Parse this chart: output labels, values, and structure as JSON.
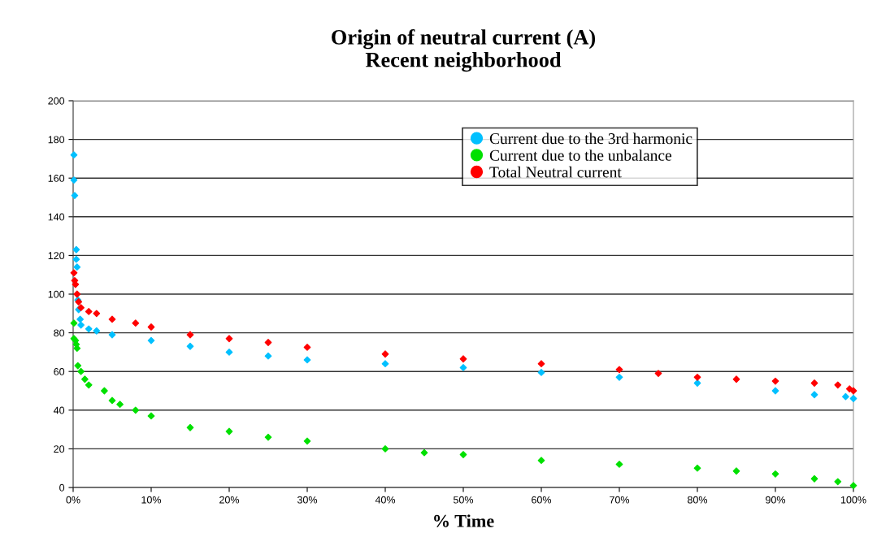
{
  "chart_data": {
    "type": "scatter",
    "title": "Origin of neutral current (A)\nRecent neighborhood",
    "xlabel": "% Time",
    "xlim": [
      0,
      100
    ],
    "xticks": [
      {
        "value": 0,
        "label": "0%"
      },
      {
        "value": 10,
        "label": "10%"
      },
      {
        "value": 20,
        "label": "20%"
      },
      {
        "value": 30,
        "label": "30%"
      },
      {
        "value": 40,
        "label": "40%"
      },
      {
        "value": 50,
        "label": "50%"
      },
      {
        "value": 60,
        "label": "60%"
      },
      {
        "value": 70,
        "label": "70%"
      },
      {
        "value": 80,
        "label": "80%"
      },
      {
        "value": 90,
        "label": "90%"
      },
      {
        "value": 100,
        "label": "100%"
      }
    ],
    "ylim": [
      0,
      200
    ],
    "yticks": [
      0,
      20,
      40,
      60,
      80,
      100,
      120,
      140,
      160,
      180,
      200
    ],
    "grid": "y",
    "legend": "top right",
    "marker": "diamond",
    "series": [
      {
        "name": "Current due to the 3rd harmonic",
        "color": "#00c0ff",
        "x": [
          0.1,
          0.1,
          0.2,
          0.4,
          0.4,
          0.5,
          0.6,
          0.7,
          0.9,
          1,
          2,
          3,
          5,
          10,
          15,
          20,
          25,
          30,
          40,
          50,
          60,
          70,
          80,
          90,
          95,
          99,
          100
        ],
        "values": [
          172,
          159,
          151,
          123,
          118,
          114,
          97,
          92,
          87,
          84,
          82,
          81,
          79,
          76,
          73,
          70,
          68,
          66,
          64,
          62,
          59.5,
          57,
          54,
          50,
          48,
          47,
          46
        ]
      },
      {
        "name": "Current due to the unbalance",
        "color": "#00e000",
        "x": [
          0.1,
          0.1,
          0.3,
          0.4,
          0.5,
          0.6,
          1,
          1.5,
          2,
          4,
          5,
          6,
          8,
          10,
          15,
          20,
          25,
          30,
          40,
          45,
          50,
          60,
          70,
          80,
          85,
          90,
          95,
          98,
          100
        ],
        "values": [
          85,
          77,
          76,
          74,
          72,
          63,
          60,
          56,
          53,
          50,
          45,
          43,
          40,
          37,
          31,
          29,
          26,
          24,
          20,
          18,
          17,
          14,
          12,
          10,
          8.5,
          7,
          4.5,
          3,
          1
        ]
      },
      {
        "name": "Total Neutral current",
        "color": "#ff0000",
        "x": [
          0.1,
          0.2,
          0.3,
          0.5,
          0.7,
          1,
          2,
          3,
          5,
          8,
          10,
          15,
          20,
          25,
          30,
          40,
          50,
          60,
          70,
          75,
          80,
          85,
          90,
          95,
          98,
          99.5,
          100
        ],
        "values": [
          111,
          107,
          105,
          100,
          96,
          93,
          91,
          90,
          87,
          85,
          83,
          79,
          77,
          75,
          72.5,
          69,
          66.5,
          64,
          61,
          59,
          57,
          56,
          55,
          54,
          53,
          51,
          50
        ]
      }
    ]
  }
}
